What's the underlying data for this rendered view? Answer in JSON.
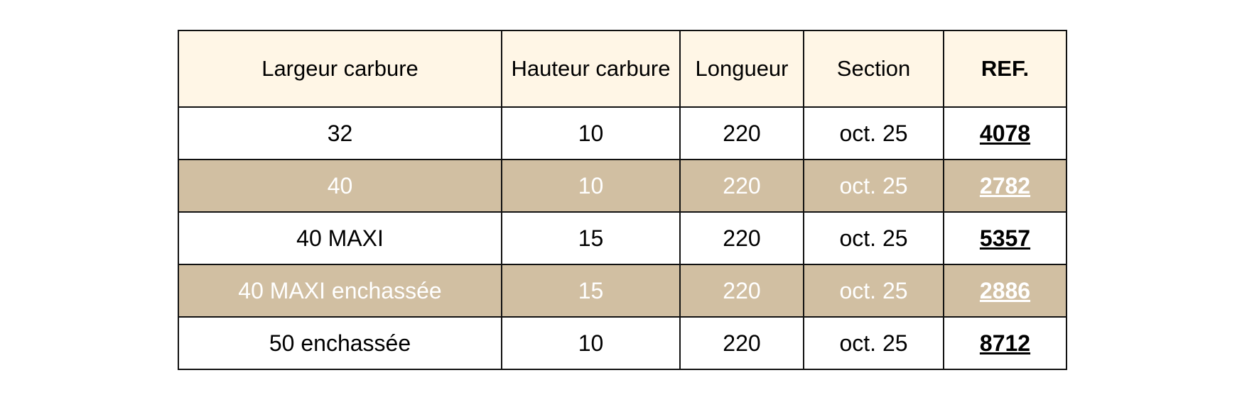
{
  "table": {
    "headers": [
      "Largeur carbure",
      "Hauteur carbure",
      "Longueur",
      "Section",
      "REF."
    ],
    "rows": [
      [
        "32",
        "10",
        "220",
        "oct. 25",
        "4078"
      ],
      [
        "40",
        "10",
        "220",
        "oct. 25",
        "2782"
      ],
      [
        "40 MAXI",
        "15",
        "220",
        "oct. 25",
        "5357"
      ],
      [
        "40 MAXI enchassée",
        "15",
        "220",
        "oct. 25",
        "2886"
      ],
      [
        "50 enchassée",
        "10",
        "220",
        "oct. 25",
        "8712"
      ]
    ]
  },
  "colors": {
    "header_bg": "#fff6e6",
    "alt_row_bg": "#d1bfa2",
    "border": "#111111"
  }
}
